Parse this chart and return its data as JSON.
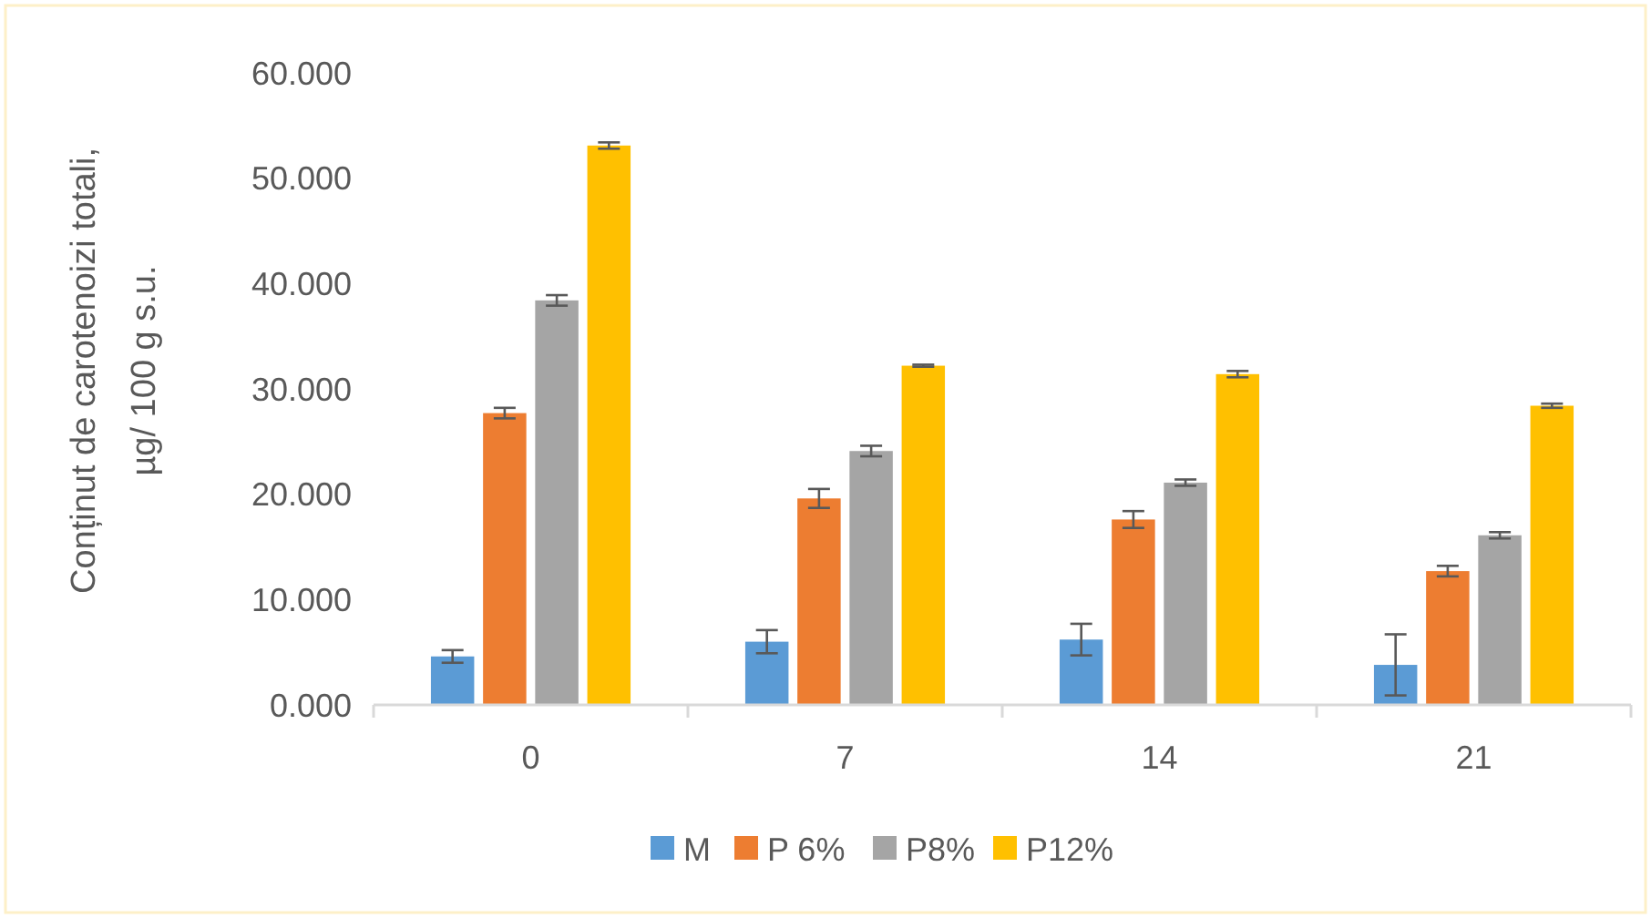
{
  "chart_data": {
    "type": "bar",
    "ylabel": "Conținut de carotenoizi totali,\nµg/ 100 g s.u.",
    "categories": [
      "0",
      "7",
      "14",
      "21"
    ],
    "series": [
      {
        "name": "M",
        "color": "#5b9bd5",
        "values": [
          4.6,
          6.0,
          6.2,
          3.8
        ],
        "errors": [
          0.6,
          1.1,
          1.5,
          2.9
        ]
      },
      {
        "name": "P 6%",
        "color": "#ed7d31",
        "values": [
          27.7,
          19.6,
          17.6,
          12.7
        ],
        "errors": [
          0.5,
          0.9,
          0.8,
          0.5
        ]
      },
      {
        "name": "P8%",
        "color": "#a5a5a5",
        "values": [
          38.4,
          24.1,
          21.1,
          16.1
        ],
        "errors": [
          0.5,
          0.5,
          0.3,
          0.3
        ]
      },
      {
        "name": "P12%",
        "color": "#ffc000",
        "values": [
          53.1,
          32.2,
          31.4,
          28.4
        ],
        "errors": [
          0.3,
          0.1,
          0.3,
          0.2
        ]
      }
    ],
    "ylim": [
      0,
      60
    ],
    "yticks": [
      {
        "value": 0,
        "label": "0.000"
      },
      {
        "value": 10,
        "label": "10.000"
      },
      {
        "value": 20,
        "label": "20.000"
      },
      {
        "value": 30,
        "label": "30.000"
      },
      {
        "value": 40,
        "label": "40.000"
      },
      {
        "value": 50,
        "label": "50.000"
      },
      {
        "value": 60,
        "label": "60.000"
      }
    ],
    "grid": false,
    "legend": "bottom"
  }
}
